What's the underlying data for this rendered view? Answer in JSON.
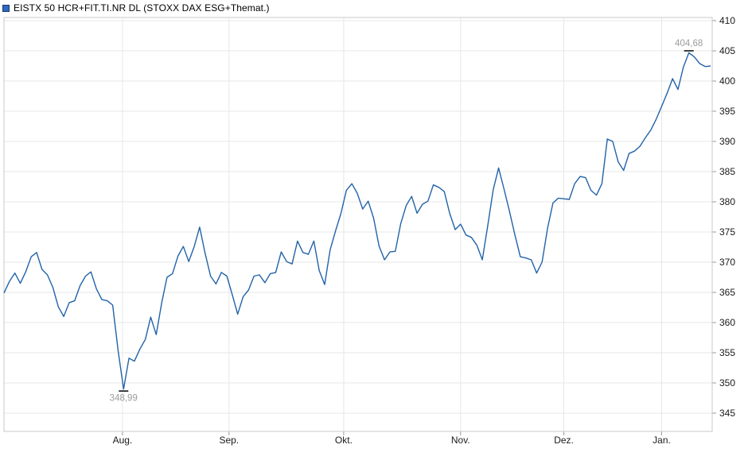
{
  "title": "EISTX 50 HCR+FIT.TI.NR DL (STOXX DAX ESG+Themat.)",
  "legend_icon": "blue-square-series-marker",
  "colors": {
    "line": "#2263a8",
    "grid": "#e7e7e7",
    "frame": "#c9c9c9",
    "tick": "#999999",
    "axis_text": "#1a1a1a",
    "annotation_text": "#9c9c9c",
    "annotation_tick": "#000000",
    "icon_fill": "#2d68c4",
    "icon_border": "#1b3b66",
    "background": "#ffffff"
  },
  "chart_data": {
    "type": "line",
    "title": "EISTX 50 HCR+FIT.TI.NR DL (STOXX DAX ESG+Themat.)",
    "xlabel": "",
    "ylabel": "",
    "grid": true,
    "legend_position": "top-left",
    "ylim": [
      342.0,
      410.5
    ],
    "yticks": [
      345,
      350,
      355,
      360,
      365,
      370,
      375,
      380,
      385,
      390,
      395,
      400,
      405,
      410
    ],
    "x_months": [
      {
        "label": "Aug.",
        "index": 21.8
      },
      {
        "label": "Sep.",
        "index": 41.4
      },
      {
        "label": "Okt.",
        "index": 62.5
      },
      {
        "label": "Nov.",
        "index": 84.0
      },
      {
        "label": "Dez.",
        "index": 103.0
      },
      {
        "label": "Jan.",
        "index": 121.0
      }
    ],
    "values": [
      364.9,
      366.8,
      368.2,
      366.5,
      368.4,
      370.9,
      371.6,
      368.8,
      367.9,
      365.8,
      362.6,
      361.0,
      363.3,
      363.6,
      366.1,
      367.7,
      368.4,
      365.6,
      363.8,
      363.6,
      362.9,
      355.4,
      348.99,
      354.1,
      353.6,
      355.6,
      357.2,
      360.9,
      358.0,
      363.2,
      367.5,
      368.1,
      371.0,
      372.6,
      370.1,
      372.6,
      375.8,
      371.5,
      367.7,
      366.4,
      368.3,
      367.7,
      364.6,
      361.4,
      364.3,
      365.4,
      367.7,
      367.9,
      366.6,
      368.1,
      368.3,
      371.7,
      370.1,
      369.7,
      373.5,
      371.6,
      371.3,
      373.5,
      368.6,
      366.3,
      372.0,
      375.2,
      378.1,
      381.9,
      383.0,
      381.4,
      378.8,
      380.1,
      377.3,
      372.7,
      370.4,
      371.7,
      371.8,
      376.4,
      379.4,
      380.9,
      378.1,
      379.6,
      380.1,
      382.8,
      382.4,
      381.7,
      378.1,
      375.4,
      376.3,
      374.5,
      374.1,
      372.8,
      370.4,
      376.0,
      382.0,
      385.6,
      382.1,
      378.4,
      374.5,
      370.9,
      370.7,
      370.4,
      368.2,
      370.0,
      375.6,
      379.8,
      380.6,
      380.5,
      380.4,
      383.0,
      384.2,
      384.0,
      381.9,
      381.1,
      383.0,
      390.4,
      390.0,
      386.6,
      385.2,
      388.0,
      388.4,
      389.2,
      390.6,
      391.9,
      393.7,
      395.8,
      398.0,
      400.4,
      398.6,
      402.3,
      404.68,
      404.0,
      402.9,
      402.4,
      402.5
    ],
    "annotations": [
      {
        "label": "348,99",
        "index": 22,
        "value": 348.99,
        "placement": "below"
      },
      {
        "label": "404,68",
        "index": 126,
        "value": 404.68,
        "placement": "above"
      }
    ]
  }
}
